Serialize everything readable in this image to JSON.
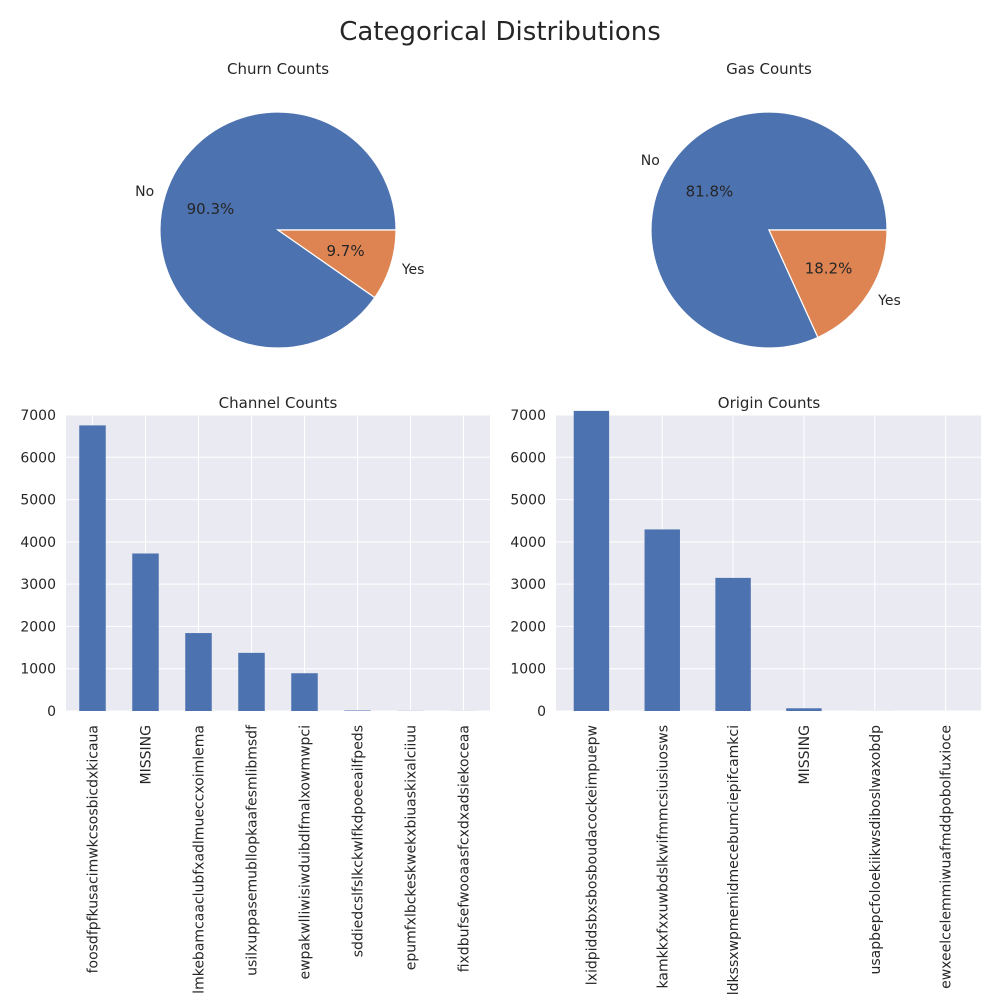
{
  "figure": {
    "title": "Categorical Distributions"
  },
  "colors": {
    "blue": "#4c72b0",
    "orange": "#dd8452",
    "panel_bg": "#eaeaf2",
    "grid": "#ffffff"
  },
  "chart_data": [
    {
      "type": "pie",
      "title": "Churn Counts",
      "categories": [
        "No",
        "Yes"
      ],
      "values": [
        90.3,
        9.7
      ],
      "labels": [
        "90.3%",
        "9.7%"
      ]
    },
    {
      "type": "pie",
      "title": "Gas Counts",
      "categories": [
        "No",
        "Yes"
      ],
      "values": [
        81.8,
        18.2
      ],
      "labels": [
        "81.8%",
        "18.2%"
      ]
    },
    {
      "type": "bar",
      "title": "Channel Counts",
      "categories": [
        "foosdfpfkusacimwkcsosbicdxkicaua",
        "MISSING",
        "lmkebamcaaclubfxadlmueccxoimlema",
        "usilxuppasemubllopkaafesmlibmsdf",
        "ewpakwlliwisiwduibdlfmalxowmwpci",
        "sddiedcslfslkckwlfkdpoeeailfpeds",
        "epumfxlbckeskwekxbiuaskixalciiuu",
        "fixdbufsefwooaasfcxdxadsiekoceaa"
      ],
      "values": [
        6754,
        3725,
        1843,
        1375,
        893,
        11,
        3,
        2
      ],
      "ylim": [
        0,
        7000
      ],
      "yticks": [
        0,
        1000,
        2000,
        3000,
        4000,
        5000,
        6000,
        7000
      ],
      "grid": true
    },
    {
      "type": "bar",
      "title": "Origin Counts",
      "categories": [
        "lxidpiddsbxsbosboudacockeimpuepw",
        "kamkkxfxxuwbdslkwifmmcsiusiuosws",
        "ldkssxwpmemidmecebumciepifcamkci",
        "MISSING",
        "usapbepcfoloekiikwsdiboslwaxobdp",
        "ewxeelcelemmiwuafmddpobolfuxioce"
      ],
      "values": [
        7097,
        4294,
        3148,
        64,
        1,
        0
      ],
      "ylim": [
        0,
        7000
      ],
      "yticks": [
        0,
        1000,
        2000,
        3000,
        4000,
        5000,
        6000,
        7000
      ],
      "grid": true
    }
  ]
}
